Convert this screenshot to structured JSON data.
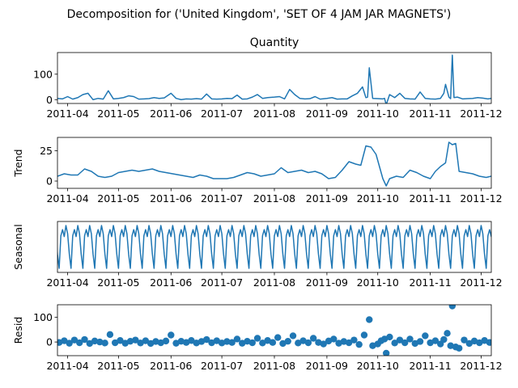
{
  "figure": {
    "suptitle": "Decomposition for ('United Kingdom', 'SET OF 4 JAM JAR MAGNETS')",
    "line_color": "#1f77b4"
  },
  "chart_data": [
    {
      "type": "line",
      "title": "Quantity",
      "xlabel": "",
      "ylabel": "",
      "x_range": [
        "2011-03-26",
        "2011-12-07"
      ],
      "ylim": [
        -15,
        185
      ],
      "yticks": [
        0,
        100
      ],
      "xticks": [
        "2011-04",
        "2011-05",
        "2011-06",
        "2011-07",
        "2011-08",
        "2011-09",
        "2011-10",
        "2011-11",
        "2011-12"
      ],
      "series": [
        {
          "x": [
            "2011-03-26",
            "2011-03-29",
            "2011-04-01",
            "2011-04-04",
            "2011-04-07",
            "2011-04-10",
            "2011-04-13",
            "2011-04-16",
            "2011-04-19",
            "2011-04-22",
            "2011-04-25",
            "2011-04-28",
            "2011-05-01",
            "2011-05-04",
            "2011-05-07",
            "2011-05-10",
            "2011-05-13",
            "2011-05-16",
            "2011-05-19",
            "2011-05-22",
            "2011-05-25",
            "2011-05-28",
            "2011-06-01",
            "2011-06-04",
            "2011-06-07",
            "2011-06-10",
            "2011-06-13",
            "2011-06-16",
            "2011-06-19",
            "2011-06-22",
            "2011-06-25",
            "2011-06-28",
            "2011-07-01",
            "2011-07-04",
            "2011-07-07",
            "2011-07-10",
            "2011-07-13",
            "2011-07-16",
            "2011-07-19",
            "2011-07-22",
            "2011-07-25",
            "2011-07-28",
            "2011-08-01",
            "2011-08-04",
            "2011-08-07",
            "2011-08-10",
            "2011-08-13",
            "2011-08-16",
            "2011-08-19",
            "2011-08-22",
            "2011-08-25",
            "2011-08-28",
            "2011-09-01",
            "2011-09-04",
            "2011-09-07",
            "2011-09-10",
            "2011-09-13",
            "2011-09-16",
            "2011-09-19",
            "2011-09-22",
            "2011-09-24",
            "2011-09-25",
            "2011-09-26",
            "2011-09-28",
            "2011-10-01",
            "2011-10-04",
            "2011-10-05",
            "2011-10-06",
            "2011-10-08",
            "2011-10-11",
            "2011-10-14",
            "2011-10-17",
            "2011-10-20",
            "2011-10-23",
            "2011-10-26",
            "2011-10-29",
            "2011-11-01",
            "2011-11-04",
            "2011-11-07",
            "2011-11-09",
            "2011-11-10",
            "2011-11-12",
            "2011-11-13",
            "2011-11-14",
            "2011-11-15",
            "2011-11-17",
            "2011-11-20",
            "2011-11-23",
            "2011-11-26",
            "2011-11-29",
            "2011-12-02",
            "2011-12-05",
            "2011-12-07"
          ],
          "y": [
            5,
            3,
            12,
            2,
            8,
            20,
            25,
            0,
            5,
            2,
            35,
            3,
            5,
            8,
            15,
            12,
            2,
            3,
            4,
            8,
            5,
            7,
            25,
            5,
            0,
            3,
            2,
            4,
            2,
            22,
            3,
            2,
            3,
            5,
            4,
            18,
            2,
            3,
            10,
            20,
            5,
            8,
            10,
            12,
            3,
            40,
            20,
            5,
            3,
            4,
            12,
            2,
            5,
            8,
            2,
            3,
            3,
            15,
            25,
            50,
            8,
            10,
            125,
            5,
            4,
            3,
            5,
            -20,
            20,
            8,
            25,
            5,
            3,
            2,
            30,
            5,
            3,
            2,
            5,
            25,
            60,
            10,
            4,
            175,
            8,
            10,
            3,
            4,
            5,
            8,
            6,
            3,
            5
          ]
        }
      ]
    },
    {
      "type": "line",
      "title": "",
      "xlabel": "",
      "ylabel": "Trend",
      "x_range": [
        "2011-03-26",
        "2011-12-07"
      ],
      "ylim": [
        -6,
        36
      ],
      "yticks": [
        0,
        25
      ],
      "xticks": [
        "2011-04",
        "2011-05",
        "2011-06",
        "2011-07",
        "2011-08",
        "2011-09",
        "2011-10",
        "2011-11",
        "2011-12"
      ],
      "series": [
        {
          "x": [
            "2011-03-26",
            "2011-03-30",
            "2011-04-03",
            "2011-04-07",
            "2011-04-11",
            "2011-04-15",
            "2011-04-19",
            "2011-04-23",
            "2011-04-27",
            "2011-05-01",
            "2011-05-05",
            "2011-05-09",
            "2011-05-13",
            "2011-05-17",
            "2011-05-21",
            "2011-05-25",
            "2011-05-29",
            "2011-06-02",
            "2011-06-06",
            "2011-06-10",
            "2011-06-14",
            "2011-06-18",
            "2011-06-22",
            "2011-06-26",
            "2011-06-30",
            "2011-07-04",
            "2011-07-08",
            "2011-07-12",
            "2011-07-16",
            "2011-07-20",
            "2011-07-24",
            "2011-07-28",
            "2011-08-01",
            "2011-08-05",
            "2011-08-09",
            "2011-08-13",
            "2011-08-17",
            "2011-08-21",
            "2011-08-25",
            "2011-08-29",
            "2011-09-02",
            "2011-09-06",
            "2011-09-10",
            "2011-09-14",
            "2011-09-18",
            "2011-09-21",
            "2011-09-24",
            "2011-09-27",
            "2011-09-30",
            "2011-10-02",
            "2011-10-04",
            "2011-10-06",
            "2011-10-08",
            "2011-10-12",
            "2011-10-16",
            "2011-10-20",
            "2011-10-24",
            "2011-10-28",
            "2011-11-01",
            "2011-11-04",
            "2011-11-07",
            "2011-11-10",
            "2011-11-12",
            "2011-11-14",
            "2011-11-16",
            "2011-11-18",
            "2011-11-22",
            "2011-11-26",
            "2011-11-30",
            "2011-12-04",
            "2011-12-07"
          ],
          "y": [
            4,
            6,
            5,
            5,
            10,
            8,
            4,
            3,
            4,
            7,
            8,
            9,
            8,
            9,
            10,
            8,
            7,
            6,
            5,
            4,
            3,
            5,
            4,
            2,
            2,
            2,
            3,
            5,
            7,
            6,
            4,
            5,
            6,
            11,
            7,
            8,
            9,
            7,
            8,
            6,
            2,
            3,
            9,
            16,
            14,
            13,
            29,
            28,
            22,
            12,
            2,
            -4,
            2,
            4,
            3,
            9,
            7,
            4,
            2,
            8,
            12,
            15,
            32,
            30,
            31,
            8,
            7,
            6,
            4,
            3,
            4
          ]
        }
      ]
    },
    {
      "type": "line",
      "title": "",
      "xlabel": "",
      "ylabel": "Seasonal",
      "x_range": [
        "2011-03-26",
        "2011-12-07"
      ],
      "ylim": [
        -8,
        4.5
      ],
      "yticks": [],
      "xticks": [
        "2011-04",
        "2011-05",
        "2011-06",
        "2011-07",
        "2011-08",
        "2011-09",
        "2011-10",
        "2011-11",
        "2011-12"
      ],
      "series": [
        {
          "period_days": 7,
          "pattern": [
            3.5,
            1.5,
            -3.5,
            -7.0,
            1.0,
            2.5,
            0.8
          ]
        }
      ]
    },
    {
      "type": "scatter",
      "title": "",
      "xlabel": "",
      "ylabel": "Resid",
      "x_range": [
        "2011-03-26",
        "2011-12-07"
      ],
      "ylim": [
        -55,
        150
      ],
      "yticks": [
        0,
        100
      ],
      "xticks": [
        "2011-04",
        "2011-05",
        "2011-06",
        "2011-07",
        "2011-08",
        "2011-09",
        "2011-10",
        "2011-11",
        "2011-12"
      ],
      "series": [
        {
          "x": [
            "2011-03-27",
            "2011-03-30",
            "2011-04-02",
            "2011-04-05",
            "2011-04-08",
            "2011-04-11",
            "2011-04-14",
            "2011-04-17",
            "2011-04-20",
            "2011-04-23",
            "2011-04-26",
            "2011-04-29",
            "2011-05-02",
            "2011-05-05",
            "2011-05-08",
            "2011-05-11",
            "2011-05-14",
            "2011-05-17",
            "2011-05-20",
            "2011-05-23",
            "2011-05-26",
            "2011-05-29",
            "2011-06-01",
            "2011-06-04",
            "2011-06-07",
            "2011-06-10",
            "2011-06-13",
            "2011-06-16",
            "2011-06-19",
            "2011-06-22",
            "2011-06-25",
            "2011-06-28",
            "2011-07-01",
            "2011-07-04",
            "2011-07-07",
            "2011-07-10",
            "2011-07-13",
            "2011-07-16",
            "2011-07-19",
            "2011-07-22",
            "2011-07-25",
            "2011-07-28",
            "2011-07-31",
            "2011-08-03",
            "2011-08-06",
            "2011-08-09",
            "2011-08-12",
            "2011-08-15",
            "2011-08-18",
            "2011-08-21",
            "2011-08-24",
            "2011-08-27",
            "2011-08-30",
            "2011-09-02",
            "2011-09-05",
            "2011-09-08",
            "2011-09-11",
            "2011-09-14",
            "2011-09-17",
            "2011-09-20",
            "2011-09-23",
            "2011-09-26",
            "2011-09-28",
            "2011-10-01",
            "2011-10-03",
            "2011-10-05",
            "2011-10-06",
            "2011-10-08",
            "2011-10-11",
            "2011-10-14",
            "2011-10-17",
            "2011-10-20",
            "2011-10-23",
            "2011-10-26",
            "2011-10-29",
            "2011-11-01",
            "2011-11-04",
            "2011-11-07",
            "2011-11-09",
            "2011-11-11",
            "2011-11-13",
            "2011-11-14",
            "2011-11-16",
            "2011-11-18",
            "2011-11-21",
            "2011-11-24",
            "2011-11-27",
            "2011-11-30",
            "2011-12-03",
            "2011-12-06"
          ],
          "y": [
            -2,
            5,
            -5,
            8,
            -3,
            10,
            -6,
            4,
            0,
            -4,
            30,
            -3,
            6,
            -5,
            3,
            8,
            -4,
            5,
            -6,
            2,
            -3,
            4,
            28,
            -5,
            3,
            -2,
            6,
            -4,
            2,
            10,
            -3,
            5,
            -4,
            2,
            -2,
            12,
            -5,
            3,
            -3,
            15,
            -4,
            6,
            -2,
            18,
            -6,
            3,
            25,
            -4,
            5,
            -3,
            15,
            -2,
            -8,
            4,
            12,
            -5,
            2,
            -3,
            8,
            -10,
            28,
            90,
            -15,
            -8,
            5,
            12,
            -45,
            20,
            -4,
            8,
            -3,
            12,
            -6,
            2,
            25,
            -3,
            5,
            -8,
            10,
            35,
            -15,
            145,
            -20,
            -25,
            8,
            -6,
            4,
            -3,
            6,
            -2
          ]
        }
      ]
    }
  ]
}
